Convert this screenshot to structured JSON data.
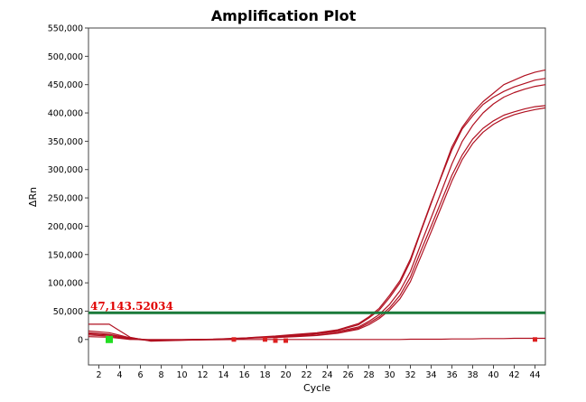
{
  "chart_data": {
    "type": "line",
    "title": "Amplification Plot",
    "xlabel": "Cycle",
    "ylabel": "ΔRn",
    "xlim": [
      1,
      45
    ],
    "ylim": [
      -45000,
      550000
    ],
    "x_ticks": [
      2,
      4,
      6,
      8,
      10,
      12,
      14,
      16,
      18,
      20,
      22,
      24,
      26,
      28,
      30,
      32,
      34,
      36,
      38,
      40,
      42,
      44
    ],
    "x_tick_labels": [
      "2",
      "4",
      "6",
      "8",
      "10",
      "12",
      "14",
      "16",
      "18",
      "20",
      "22",
      "24",
      "26",
      "28",
      "30",
      "32",
      "34",
      "36",
      "38",
      "40",
      "42",
      "44"
    ],
    "y_ticks": [
      0,
      50000,
      100000,
      150000,
      200000,
      250000,
      300000,
      350000,
      400000,
      450000,
      500000,
      550000
    ],
    "y_tick_labels": [
      "0",
      "50,000",
      "100,000",
      "150,000",
      "200,000",
      "250,000",
      "300,000",
      "350,000",
      "400,000",
      "450,000",
      "500,000",
      "550,000"
    ],
    "threshold": {
      "value": 47143.52034,
      "label": "47,143.52034",
      "color": "#1a7a3a"
    },
    "line_color": "#b01020",
    "x": [
      1,
      3,
      5,
      7,
      9,
      11,
      13,
      15,
      17,
      19,
      21,
      23,
      25,
      27,
      28,
      29,
      30,
      31,
      32,
      33,
      34,
      35,
      36,
      37,
      38,
      39,
      40,
      41,
      42,
      43,
      44,
      45
    ],
    "series": [
      {
        "values": [
          27000,
          27000,
          4000,
          -3000,
          -2000,
          -1000,
          -500,
          0,
          3000,
          5000,
          8000,
          11000,
          16000,
          26000,
          38000,
          52000,
          74000,
          100000,
          138000,
          190000,
          240000,
          290000,
          340000,
          375000,
          400000,
          420000,
          435000,
          450000,
          458000,
          466000,
          472000,
          476000
        ]
      },
      {
        "values": [
          15000,
          12000,
          3000,
          -2000,
          -1500,
          -800,
          0,
          1000,
          4000,
          6000,
          9000,
          12000,
          17000,
          28000,
          40000,
          55000,
          78000,
          104000,
          142000,
          192000,
          242000,
          288000,
          335000,
          372000,
          395000,
          415000,
          428000,
          438000,
          446000,
          452000,
          458000,
          461000
        ]
      },
      {
        "values": [
          10000,
          8000,
          2000,
          -1000,
          -1000,
          -500,
          0,
          1500,
          3500,
          5000,
          7000,
          10000,
          14000,
          22000,
          32000,
          44000,
          62000,
          86000,
          120000,
          168000,
          215000,
          262000,
          310000,
          350000,
          378000,
          400000,
          416000,
          428000,
          436000,
          442000,
          447000,
          450000
        ]
      },
      {
        "values": [
          8000,
          6000,
          1000,
          -2000,
          -1000,
          0,
          500,
          2000,
          3000,
          4000,
          6000,
          8000,
          12000,
          20000,
          29000,
          40000,
          56000,
          78000,
          110000,
          156000,
          200000,
          245000,
          290000,
          326000,
          354000,
          373000,
          386000,
          396000,
          402000,
          407000,
          411000,
          413000
        ]
      },
      {
        "values": [
          12000,
          9000,
          2000,
          -1500,
          -1000,
          0,
          500,
          1800,
          2500,
          3500,
          5000,
          7000,
          11000,
          18000,
          26000,
          37000,
          52000,
          72000,
          102000,
          146000,
          190000,
          235000,
          280000,
          318000,
          346000,
          366000,
          380000,
          390000,
          397000,
          402000,
          406000,
          409000
        ]
      },
      {
        "values": [
          5000,
          4000,
          0,
          0,
          0,
          0,
          0,
          0,
          0,
          0,
          0,
          0,
          0,
          0,
          0,
          0,
          0,
          0,
          500,
          500,
          500,
          500,
          1000,
          1000,
          1000,
          1500,
          1500,
          1500,
          2000,
          2000,
          2000,
          2000
        ]
      }
    ],
    "markers": [
      {
        "x": 3,
        "y": 0,
        "color": "#22dd22"
      },
      {
        "x": 15,
        "y": 0,
        "color": "#dd2020"
      },
      {
        "x": 18,
        "y": 0,
        "color": "#dd2020"
      },
      {
        "x": 19,
        "y": -2000,
        "color": "#dd2020"
      },
      {
        "x": 20,
        "y": -2000,
        "color": "#dd2020"
      },
      {
        "x": 44,
        "y": 0,
        "color": "#dd2020"
      }
    ],
    "grid": false,
    "legend": "none"
  }
}
